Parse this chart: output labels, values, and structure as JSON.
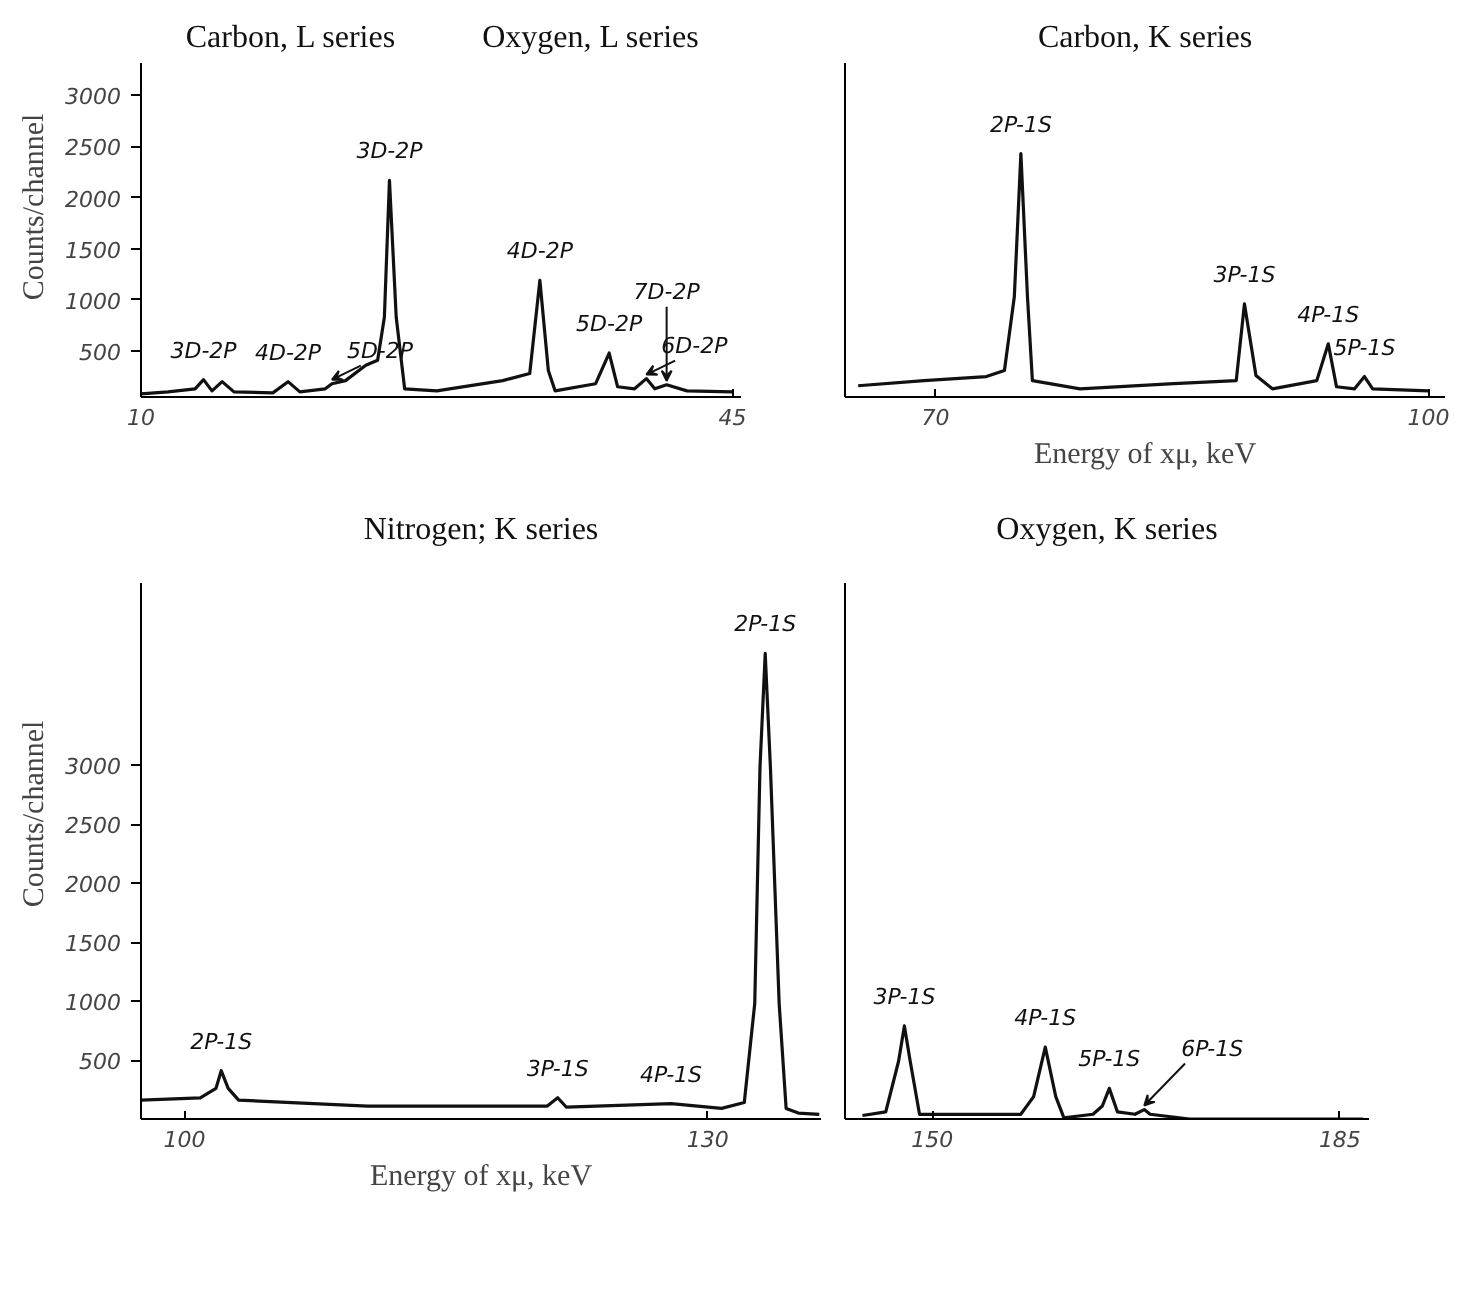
{
  "chart_data": [
    {
      "type": "line",
      "ylabel": "Counts/channel",
      "xlim": [
        10,
        45.5
      ],
      "ylim": [
        50,
        3310
      ],
      "xticks": [
        10,
        45
      ],
      "yticks": [
        500,
        1000,
        1500,
        2000,
        2500,
        3000
      ],
      "x": [
        10,
        11.6,
        13.2,
        13.7,
        14.2,
        14.8,
        15.5,
        17.8,
        18.7,
        19.4,
        20.9,
        21.3,
        22.1,
        23.3,
        24.0,
        24.4,
        24.7,
        25.1,
        25.6,
        27.5,
        31.4,
        33.0,
        33.6,
        34.1,
        34.5,
        36.9,
        37.7,
        38.2,
        39.2,
        39.9,
        40.4,
        41.1,
        42.3,
        45.0
      ],
      "series": [
        {
          "color": "#111111",
          "values": [
            80,
            100,
            130,
            220,
            110,
            200,
            100,
            90,
            200,
            100,
            130,
            180,
            210,
            360,
            410,
            830,
            2170,
            830,
            130,
            110,
            210,
            280,
            1190,
            310,
            110,
            180,
            480,
            150,
            130,
            230,
            130,
            170,
            110,
            100
          ]
        }
      ],
      "annotations": [
        "Carbon, L series",
        "Oxygen, L series",
        {
          "text": "3D-2P",
          "x": 13.7,
          "y": 220
        },
        {
          "text": "4D-2P",
          "x": 18.7,
          "y": 200
        },
        {
          "text": "5D-2P",
          "x": 21.3,
          "y": 180
        },
        {
          "text": "3D-2P",
          "x": 24.7,
          "y": 2170
        },
        {
          "text": "4D-2P",
          "x": 33.6,
          "y": 1190
        },
        {
          "text": "5D-2P",
          "x": 37.7,
          "y": 480
        },
        {
          "text": "6D-2P",
          "x": 39.9,
          "y": 230
        },
        {
          "text": "7D-2P",
          "x": 41.1,
          "y": 170
        }
      ]
    },
    {
      "type": "line",
      "xlabel": "Energy of xμ, keV",
      "xlim": [
        64.5,
        101
      ],
      "ylim": [
        50,
        3310
      ],
      "xticks": [
        70,
        100
      ],
      "yticks": [
        500,
        1000,
        1500,
        2000,
        2500,
        3000
      ],
      "tick_labels": "x",
      "x": [
        65.3,
        69.3,
        73.1,
        74.2,
        74.8,
        75.2,
        75.6,
        75.9,
        78.8,
        84.5,
        88.3,
        88.8,
        89.5,
        90.5,
        93.2,
        93.9,
        94.4,
        95.5,
        96.1,
        96.6,
        100
      ],
      "series": [
        {
          "color": "#111111",
          "values": [
            160,
            210,
            250,
            310,
            1030,
            2430,
            1030,
            210,
            130,
            180,
            210,
            960,
            260,
            130,
            210,
            570,
            150,
            130,
            250,
            130,
            110
          ]
        }
      ],
      "annotations": [
        "Carbon, K series",
        {
          "text": "2P-1S",
          "x": 75.2,
          "y": 2430
        },
        {
          "text": "3P-1S",
          "x": 88.8,
          "y": 960
        },
        {
          "text": "4P-1S",
          "x": 93.9,
          "y": 570
        },
        {
          "text": "5P-1S",
          "x": 96.1,
          "y": 250
        }
      ]
    },
    {
      "type": "line",
      "ylabel": "Counts/channel",
      "xlabel": "Energy of xμ, keV",
      "xlim": [
        97.5,
        136.5
      ],
      "ylim": [
        0,
        4540
      ],
      "xticks": [
        100,
        130
      ],
      "yticks": [
        500,
        1000,
        1500,
        2000,
        2500,
        3000
      ],
      "x": [
        97.5,
        100.9,
        101.8,
        102.1,
        102.5,
        103.1,
        110.5,
        120.8,
        121.4,
        121.9,
        127.9,
        130.8,
        132.1,
        132.7,
        133.0,
        133.3,
        133.6,
        134.1,
        134.5,
        135.2,
        136.4
      ],
      "series": [
        {
          "color": "#111111",
          "values": [
            160,
            180,
            260,
            410,
            260,
            160,
            110,
            110,
            180,
            100,
            130,
            90,
            140,
            980,
            2980,
            3950,
            2980,
            980,
            90,
            50,
            40
          ]
        }
      ],
      "annotations": [
        "Nitrogen; K series",
        {
          "text": "2P-1S",
          "x": 102.1,
          "y": 410
        },
        {
          "text": "3P-1S",
          "x": 121.4,
          "y": 180
        },
        {
          "text": "4P-1S",
          "x": 127.9,
          "y": 130
        },
        {
          "text": "2P-1S",
          "x": 133.3,
          "y": 3950
        }
      ]
    },
    {
      "type": "line",
      "xlim": [
        142.5,
        187.5
      ],
      "ylim": [
        0,
        4540
      ],
      "xticks": [
        150,
        185
      ],
      "yticks": [
        500,
        1000,
        1500,
        2000,
        2500,
        3000
      ],
      "tick_labels": "x",
      "x": [
        144.0,
        146.0,
        147.1,
        147.6,
        148.1,
        148.9,
        157.6,
        158.7,
        159.7,
        160.6,
        161.3,
        163.8,
        164.6,
        165.2,
        165.9,
        167.4,
        168.2,
        168.7,
        172.1,
        187
      ],
      "series": [
        {
          "color": "#111111",
          "values": [
            30,
            60,
            490,
            790,
            490,
            40,
            40,
            190,
            610,
            190,
            10,
            40,
            110,
            260,
            60,
            40,
            80,
            40,
            0,
            0
          ]
        }
      ],
      "annotations": [
        "Oxygen, K series",
        {
          "text": "3P-1S",
          "x": 147.6,
          "y": 790
        },
        {
          "text": "4P-1S",
          "x": 159.7,
          "y": 610
        },
        {
          "text": "5P-1S",
          "x": 165.2,
          "y": 260
        },
        {
          "text": "6P-1S",
          "x": 168.2,
          "y": 80
        }
      ]
    }
  ]
}
